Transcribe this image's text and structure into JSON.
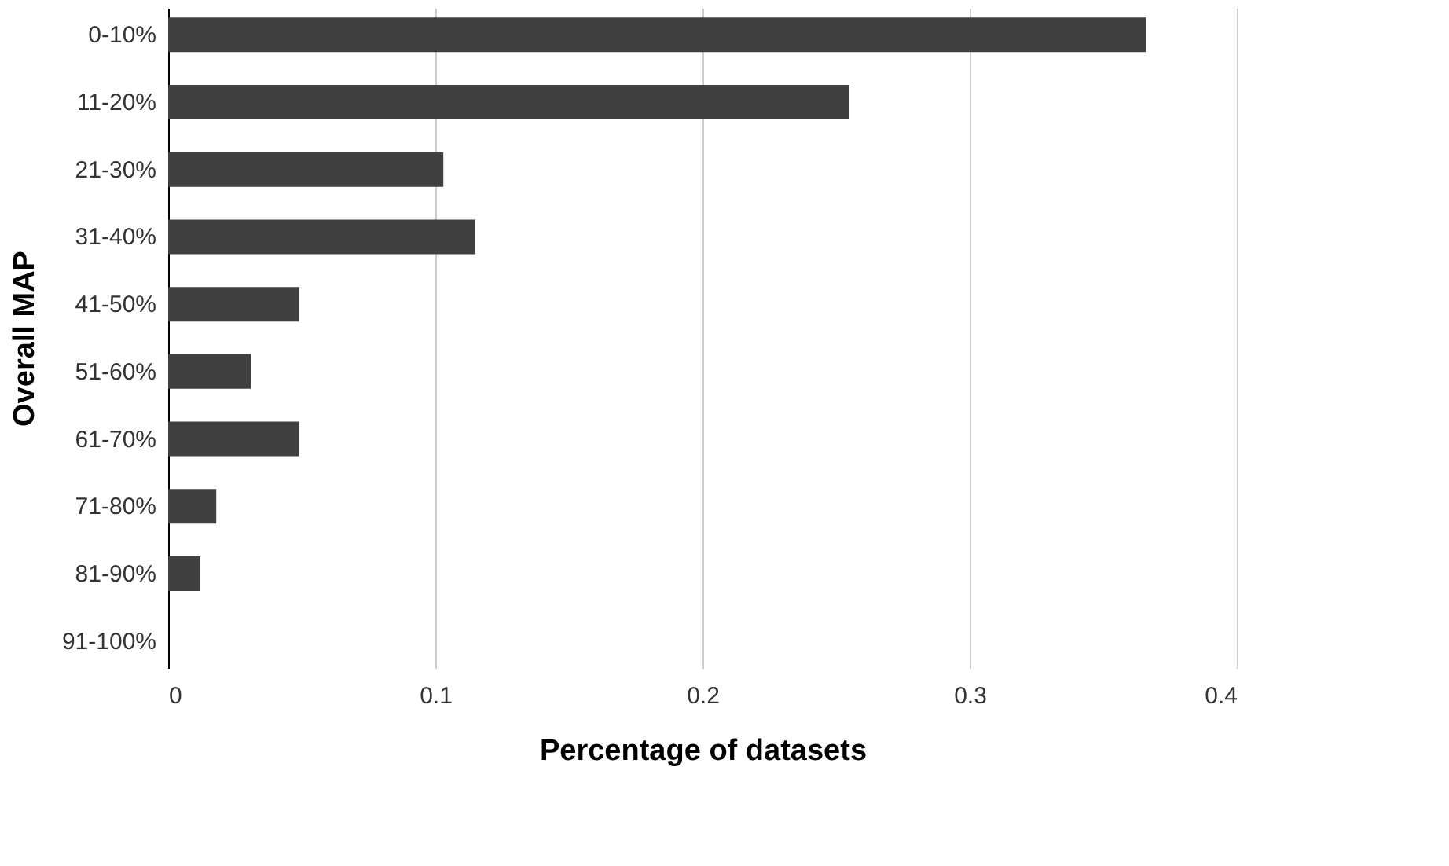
{
  "chart_data": {
    "type": "bar",
    "orientation": "horizontal",
    "xlabel": "Percentage of datasets",
    "ylabel": "Overall MAP",
    "categories": [
      "0-10%",
      "11-20%",
      "21-30%",
      "31-40%",
      "41-50%",
      "51-60%",
      "61-70%",
      "71-80%",
      "81-90%",
      "91-100%"
    ],
    "values": [
      0.366,
      0.255,
      0.103,
      0.115,
      0.049,
      0.031,
      0.049,
      0.018,
      0.012,
      0
    ],
    "color": "#404040",
    "xlim": [
      0,
      0.4
    ],
    "xticks": [
      0,
      0.1,
      0.2,
      0.3,
      0.4
    ],
    "grid": "x"
  }
}
